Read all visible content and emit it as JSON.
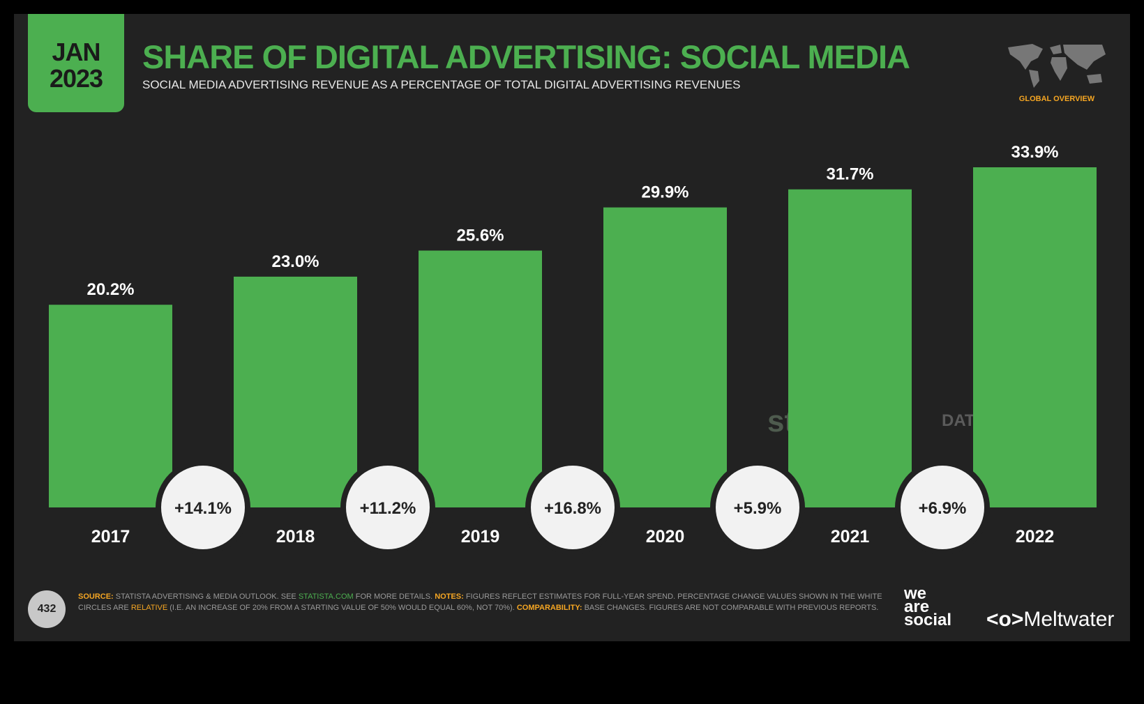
{
  "header": {
    "date_month": "JAN",
    "date_year": "2023",
    "title": "SHARE OF DIGITAL ADVERTISING: SOCIAL MEDIA",
    "subtitle": "SOCIAL MEDIA ADVERTISING REVENUE AS A PERCENTAGE OF TOTAL DIGITAL ADVERTISING REVENUES",
    "region_label": "GLOBAL OVERVIEW"
  },
  "chart_data": {
    "type": "bar",
    "title": "SHARE OF DIGITAL ADVERTISING: SOCIAL MEDIA",
    "categories": [
      "2017",
      "2018",
      "2019",
      "2020",
      "2021",
      "2022"
    ],
    "values": [
      20.2,
      23.0,
      25.6,
      29.9,
      31.7,
      33.9
    ],
    "value_labels": [
      "20.2%",
      "23.0%",
      "25.6%",
      "29.9%",
      "31.7%",
      "33.9%"
    ],
    "changes": [
      "+14.1%",
      "+11.2%",
      "+16.8%",
      "+5.9%",
      "+6.9%"
    ],
    "ylim": [
      0,
      33.9
    ],
    "grid": false,
    "bar_color": "#4caf50"
  },
  "watermarks": {
    "statista": "statista",
    "datareportal": "DATAREPORTAL"
  },
  "footer": {
    "page": "432",
    "source_label": "SOURCE:",
    "source_text": " STATISTA ADVERTISING & MEDIA OUTLOOK. SEE ",
    "source_link": "STATISTA.COM",
    "source_tail": " FOR MORE DETAILS. ",
    "notes_label": "NOTES:",
    "notes_text": " FIGURES REFLECT ESTIMATES FOR FULL-YEAR SPEND. PERCENTAGE CHANGE VALUES SHOWN IN THE WHITE CIRCLES ARE ",
    "relative": "RELATIVE",
    "notes_tail": " (I.E. AN INCREASE OF 20% FROM A STARTING VALUE OF 50% WOULD EQUAL 60%, NOT 70%). ",
    "comp_label": "COMPARABILITY:",
    "comp_text": " BASE CHANGES. FIGURES ARE NOT COMPARABLE WITH PREVIOUS REPORTS."
  },
  "logos": {
    "was1": "we",
    "was2": "are",
    "was3": "social",
    "meltwater": "Meltwater"
  },
  "colors": {
    "accent": "#4caf50",
    "highlight": "#f5a623",
    "background": "#222222"
  }
}
